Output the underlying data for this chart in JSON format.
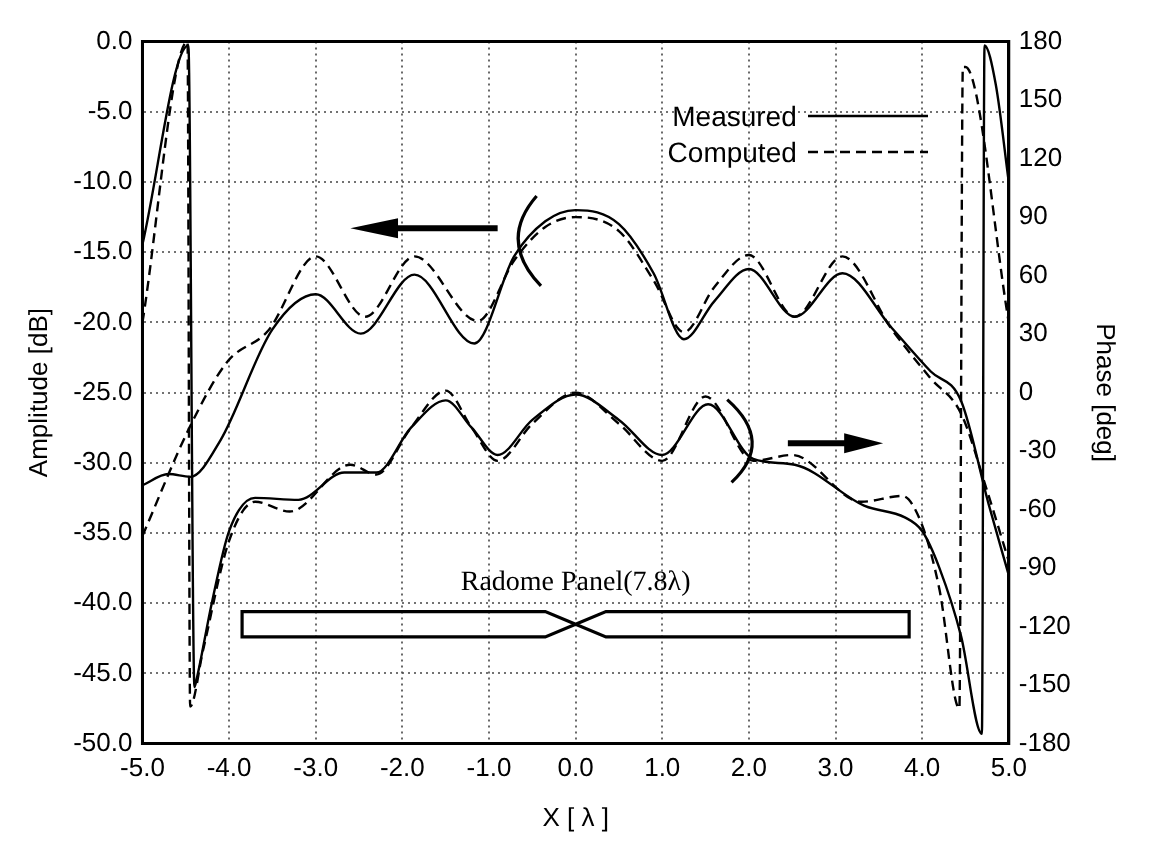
{
  "chart_data": {
    "type": "line",
    "xlabel": "X [ λ ]",
    "ylabel": "Amplitude [dB]",
    "y2label": "Phase [deg]",
    "annotations": [
      "Radome Panel(7.8λ)"
    ],
    "xlim": [
      -5,
      5
    ],
    "xticks": [
      {
        "value": -5,
        "label": "-5.0"
      },
      {
        "value": -4,
        "label": "-4.0"
      },
      {
        "value": -3,
        "label": "-3.0"
      },
      {
        "value": -2,
        "label": "-2.0"
      },
      {
        "value": -1,
        "label": "-1.0"
      },
      {
        "value": 0,
        "label": "0.0"
      },
      {
        "value": 1,
        "label": "1.0"
      },
      {
        "value": 2,
        "label": "2.0"
      },
      {
        "value": 3,
        "label": "3.0"
      },
      {
        "value": 4,
        "label": "4.0"
      },
      {
        "value": 5,
        "label": "5.0"
      }
    ],
    "ylim": [
      -50,
      0
    ],
    "yticks": [
      {
        "value": -50,
        "label": "-50.0"
      },
      {
        "value": -45,
        "label": "-45.0"
      },
      {
        "value": -40,
        "label": "-40.0"
      },
      {
        "value": -35,
        "label": "-35.0"
      },
      {
        "value": -30,
        "label": "-30.0"
      },
      {
        "value": -25,
        "label": "-25.0"
      },
      {
        "value": -20,
        "label": "-20.0"
      },
      {
        "value": -15,
        "label": "-15.0"
      },
      {
        "value": -10,
        "label": "-10.0"
      },
      {
        "value": -5,
        "label": "-5.0"
      },
      {
        "value": 0,
        "label": "0.0"
      }
    ],
    "y2lim": [
      -180,
      180
    ],
    "y2ticks": [
      -180,
      -150,
      -120,
      -90,
      -60,
      -30,
      0,
      30,
      60,
      90,
      120,
      150,
      180
    ],
    "grid": true,
    "legend": "top right",
    "marker": "none",
    "series": [
      {
        "name": "Measured",
        "color": "#000000",
        "line_style": "solid",
        "x": [
          -5,
          -4.7,
          -4.45,
          -4.1,
          -3.5,
          -3.0,
          -2.48,
          -1.86,
          -1.17,
          -0.71,
          -0.35,
          0,
          0.5,
          0.9,
          1.25,
          1.6,
          2.0,
          2.53,
          3.08,
          3.65,
          4.1,
          4.45,
          4.77,
          5.0
        ],
        "values": [
          -31.6,
          -30.8,
          -31.0,
          -28.4,
          -20.5,
          -18.0,
          -20.8,
          -16.6,
          -21.5,
          -15.3,
          -12.8,
          -12.0,
          -13.0,
          -16.5,
          -21.2,
          -18.5,
          -16.2,
          -19.6,
          -16.5,
          -20.4,
          -23.5,
          -25.6,
          -33,
          -38
        ]
      },
      {
        "name": "Computed",
        "color": "#000000",
        "line_style": "dashed",
        "x": [
          -5,
          -4.45,
          -4.02,
          -3.55,
          -3.0,
          -2.43,
          -1.86,
          -1.13,
          -0.7,
          -0.35,
          0,
          0.5,
          0.9,
          1.25,
          1.6,
          2.0,
          2.53,
          3.08,
          3.65,
          4.1,
          4.45,
          4.75,
          5.0
        ],
        "values": [
          -35.2,
          -27.4,
          -22.8,
          -20.6,
          -15.3,
          -19.6,
          -15.3,
          -19.9,
          -15.5,
          -13.2,
          -12.5,
          -13.5,
          -17,
          -20.7,
          -17.5,
          -15.2,
          -19.6,
          -15.3,
          -20.5,
          -24,
          -26.5,
          -32,
          -37
        ]
      },
      {
        "axis": "y2",
        "color": "#000000",
        "line_style": "solid",
        "x": [
          -5,
          -4.47,
          -4.4,
          -4.38,
          -4.2,
          -4.0,
          -3.7,
          -3.2,
          -2.67,
          -2.3,
          -1.9,
          -1.5,
          -1.2,
          -0.9,
          -0.5,
          0,
          0.5,
          1.0,
          1.53,
          2.05,
          2.53,
          3.33,
          3.8,
          4.0,
          4.2,
          4.45,
          4.69,
          4.72,
          4.85,
          5.0
        ],
        "values": [
          76,
          178,
          -151,
          -148,
          -108,
          -71,
          -54,
          -55,
          -41,
          -41,
          -18,
          -4,
          -18,
          -32,
          -14,
          -1,
          -14,
          -32,
          -6,
          -34,
          -37,
          -58,
          -64,
          -71,
          -90,
          -125,
          -175,
          178,
          158,
          108
        ]
      },
      {
        "axis": "y2",
        "color": "#000000",
        "line_style": "dashed",
        "x": [
          -5,
          -4.48,
          -4.45,
          -4.3,
          -4.0,
          -3.7,
          -3.3,
          -2.6,
          -2.3,
          -1.9,
          -1.5,
          -1.2,
          -0.9,
          -0.5,
          0,
          0.5,
          1.0,
          1.5,
          2.05,
          2.5,
          3.3,
          3.77,
          4.0,
          4.2,
          4.43,
          4.47,
          4.5,
          5.0
        ],
        "values": [
          36,
          180,
          -161,
          -132,
          -76,
          -56,
          -61,
          -37,
          -42,
          -18,
          1,
          -18,
          -35,
          -16,
          0,
          -16,
          -35,
          -2,
          -35,
          -32,
          -56,
          -53,
          -68,
          -101,
          -162,
          167,
          167,
          36
        ]
      }
    ]
  }
}
